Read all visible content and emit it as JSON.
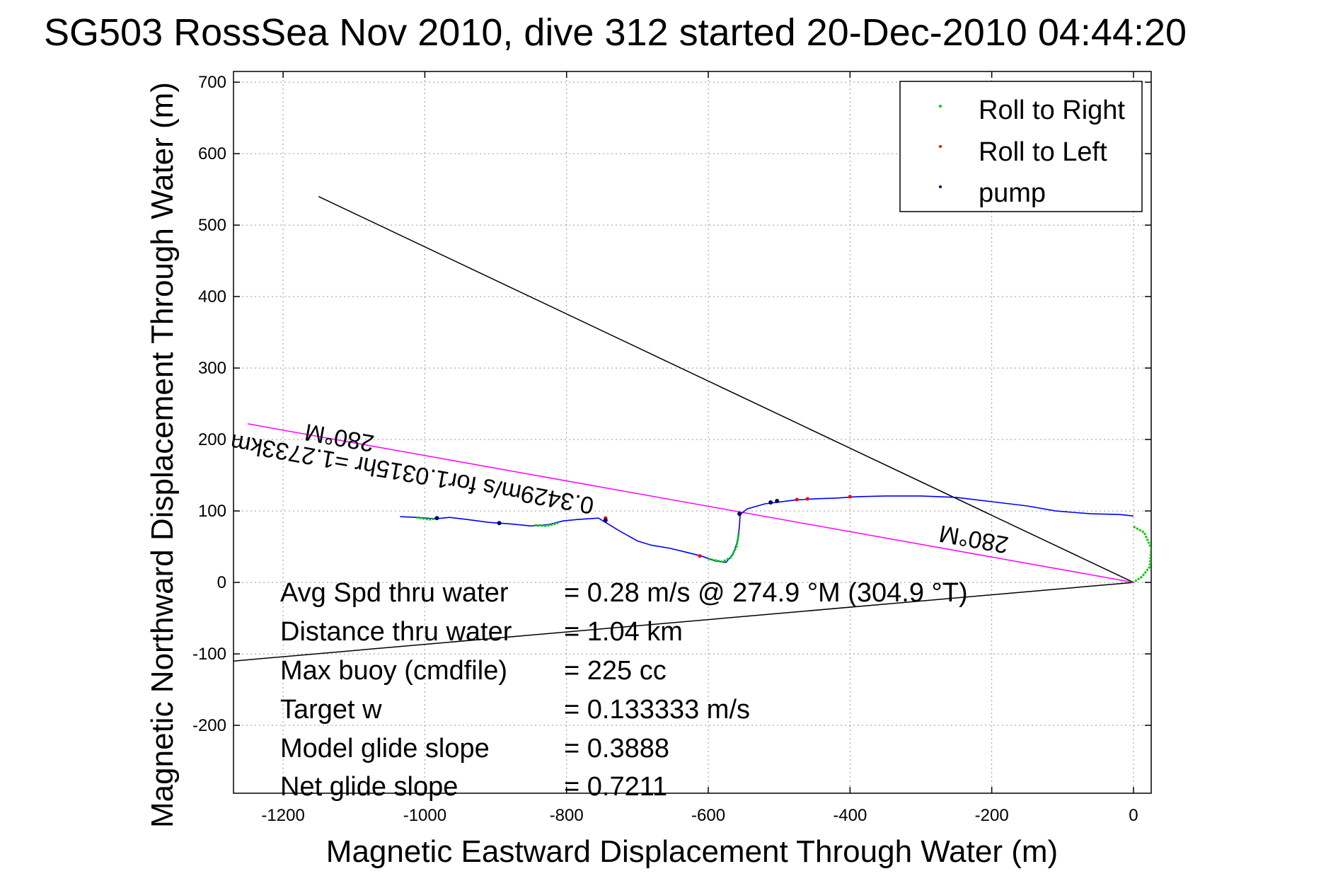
{
  "chart_data": {
    "type": "line",
    "title": "SG503 RossSea Nov 2010, dive 312 started 20-Dec-2010 04:44:20",
    "xlabel": "Magnetic Eastward Displacement Through Water (m)",
    "ylabel": "Magnetic Northward Displacement Through Water (m)",
    "xlim": [
      -1270,
      25
    ],
    "ylim": [
      -295,
      715
    ],
    "x_ticks": [
      -1200,
      -1000,
      -800,
      -600,
      -400,
      -200,
      0
    ],
    "y_ticks": [
      -200,
      -100,
      0,
      100,
      200,
      300,
      400,
      500,
      600,
      700
    ],
    "grid": true,
    "legend_position": "top-right",
    "legend": [
      {
        "label": "Roll to Right",
        "color": "#00cc00"
      },
      {
        "label": "Roll to Left",
        "color": "#ff0000"
      },
      {
        "label": "pump",
        "color": "#000066"
      }
    ],
    "track": {
      "color": "#0000ff",
      "points": [
        [
          -1035,
          92
        ],
        [
          -1010,
          91
        ],
        [
          -985,
          89
        ],
        [
          -965,
          91
        ],
        [
          -940,
          88
        ],
        [
          -910,
          84
        ],
        [
          -880,
          82
        ],
        [
          -850,
          79
        ],
        [
          -825,
          81
        ],
        [
          -805,
          86
        ],
        [
          -785,
          88
        ],
        [
          -755,
          90
        ],
        [
          -725,
          72
        ],
        [
          -700,
          58
        ],
        [
          -680,
          52
        ],
        [
          -655,
          48
        ],
        [
          -630,
          42
        ],
        [
          -610,
          37
        ],
        [
          -590,
          30
        ],
        [
          -575,
          28
        ],
        [
          -565,
          40
        ],
        [
          -558,
          60
        ],
        [
          -556,
          80
        ],
        [
          -555,
          95
        ],
        [
          -545,
          103
        ],
        [
          -520,
          110
        ],
        [
          -480,
          115
        ],
        [
          -450,
          117
        ],
        [
          -420,
          118
        ],
        [
          -390,
          120
        ],
        [
          -350,
          121
        ],
        [
          -300,
          121
        ],
        [
          -250,
          119
        ],
        [
          -200,
          113
        ],
        [
          -150,
          107
        ],
        [
          -110,
          100
        ],
        [
          -60,
          96
        ],
        [
          -20,
          95
        ],
        [
          0,
          93
        ]
      ]
    },
    "roll_right_segments": [
      [
        [
          -1012,
          91
        ],
        [
          -995,
          88
        ],
        [
          -980,
          90
        ]
      ],
      [
        [
          -845,
          80
        ],
        [
          -828,
          79
        ],
        [
          -812,
          83
        ]
      ],
      [
        [
          -600,
          33
        ],
        [
          -580,
          29
        ],
        [
          -568,
          35
        ],
        [
          -560,
          50
        ],
        [
          -557,
          70
        ]
      ],
      [
        [
          0,
          78
        ],
        [
          15,
          70
        ],
        [
          25,
          48
        ],
        [
          23,
          22
        ],
        [
          12,
          8
        ],
        [
          0,
          0
        ]
      ]
    ],
    "roll_left_points": [
      [
        -745,
        90
      ],
      [
        -612,
        37
      ],
      [
        -475,
        116
      ],
      [
        -460,
        117
      ],
      [
        -400,
        120
      ]
    ],
    "pump_points": [
      [
        -983,
        90
      ],
      [
        -895,
        83
      ],
      [
        -745,
        87
      ],
      [
        -556,
        96
      ],
      [
        -512,
        112
      ],
      [
        -503,
        114
      ]
    ],
    "reference_lines": [
      {
        "color": "#000000",
        "points": [
          [
            -1150,
            540
          ],
          [
            0,
            0
          ]
        ]
      },
      {
        "color": "#000000",
        "points": [
          [
            -1270,
            -110
          ],
          [
            0,
            0
          ]
        ]
      },
      {
        "color": "#ff00ff",
        "points": [
          [
            -1250,
            222
          ],
          [
            0,
            0
          ]
        ]
      }
    ],
    "annotations": [
      {
        "text": "280°M",
        "x": -1070,
        "y": 205,
        "angle": 190
      },
      {
        "text": "280°M",
        "x": -175,
        "y": 63,
        "angle": 190
      },
      {
        "text": "0.3429m/s for1.0315hr =1.2733km",
        "x": -760,
        "y": 118,
        "angle": 190
      }
    ],
    "stats": [
      {
        "label": "Avg Spd thru water",
        "value": "=  0.28 m/s @ 274.9 °M (304.9 °T)"
      },
      {
        "label": "Distance thru water",
        "value": "=  1.04 km"
      },
      {
        "label": "Max buoy (cmdfile)",
        "value": "= 225 cc"
      },
      {
        "label": "Target w",
        "value": "= 0.133333 m/s"
      },
      {
        "label": "Model glide slope",
        "value": "= 0.3888"
      },
      {
        "label": "Net glide slope",
        "value": "= 0.7211"
      }
    ]
  }
}
